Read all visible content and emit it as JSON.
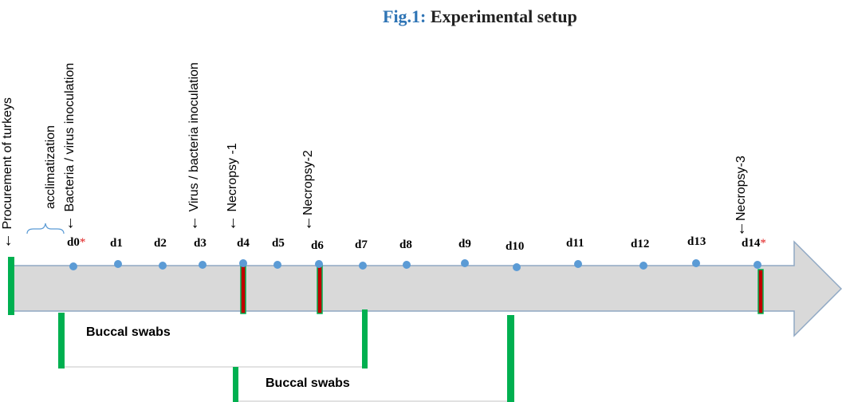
{
  "title": {
    "label": "Fig.1:",
    "text": "Experimental setup"
  },
  "events": {
    "procurement": "Procurement of turkeys",
    "acclimatization": "acclimatization",
    "inoculation_1": "Bacteria / virus inoculation",
    "inoculation_2": "Virus / bacteria inoculation",
    "necropsy_1": "Necropsy -1",
    "necropsy_2": "Necropsy-2",
    "necropsy_3": "Necropsy-3"
  },
  "days": {
    "d0": "d0",
    "d1": "d1",
    "d2": "d2",
    "d3": "d3",
    "d4": "d4",
    "d5": "d5",
    "d6": "d6",
    "d7": "d7",
    "d8": "d8",
    "d9": "d9",
    "d10": "d10",
    "d11": "d11",
    "d12": "d12",
    "d13": "d13",
    "d14": "d14"
  },
  "asterisk": "*",
  "swabs": {
    "group1": "Buccal swabs",
    "group2": "Buccal swabs"
  },
  "colors": {
    "title_accent": "#2e74b5",
    "arrow_fill": "#d9d9d9",
    "arrow_stroke": "#8fa8c4",
    "marker_green": "#00b050",
    "marker_red": "#c00000",
    "dot": "#5b9bd5",
    "asterisk": "#e02020"
  }
}
